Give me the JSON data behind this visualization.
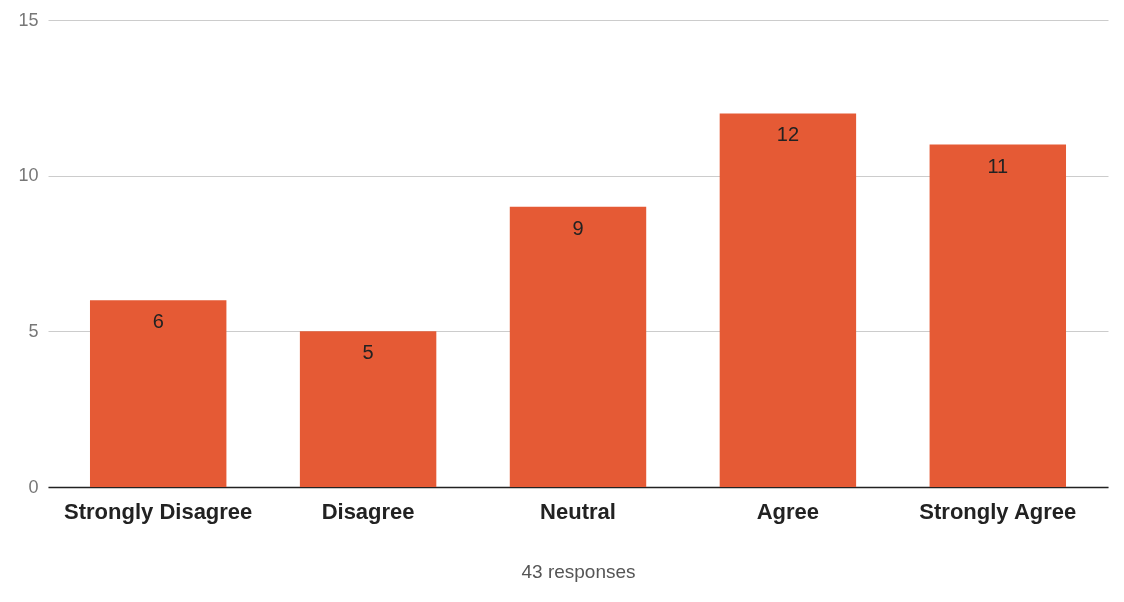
{
  "chart_data": {
    "type": "bar",
    "xlabel": "43 responses",
    "categories": [
      "Strongly Disagree",
      "Disagree",
      "Neutral",
      "Agree",
      "Strongly Agree"
    ],
    "values": [
      6,
      5,
      9,
      12,
      11
    ],
    "color": "#e55a35",
    "ylim": [
      0,
      15
    ],
    "yticks": [
      0,
      5,
      10,
      15
    ],
    "grid": "y",
    "data_labels": true
  }
}
